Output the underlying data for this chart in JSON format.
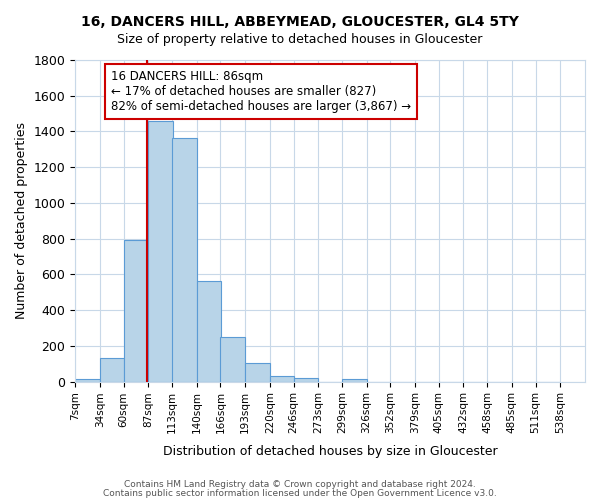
{
  "title": "16, DANCERS HILL, ABBEYMEAD, GLOUCESTER, GL4 5TY",
  "subtitle": "Size of property relative to detached houses in Gloucester",
  "xlabel": "Distribution of detached houses by size in Gloucester",
  "ylabel": "Number of detached properties",
  "bar_left_edges": [
    7,
    34,
    60,
    87,
    113,
    140,
    166,
    193,
    220,
    246,
    273,
    299,
    326,
    352,
    379,
    405,
    432,
    458,
    485,
    511
  ],
  "bar_heights": [
    15,
    130,
    795,
    1460,
    1365,
    565,
    250,
    105,
    30,
    20,
    0,
    15,
    0,
    0,
    0,
    0,
    0,
    0,
    0,
    0
  ],
  "bin_width": 27,
  "bar_color": "#b8d4e8",
  "bar_edge_color": "#5b9bd5",
  "tick_positions": [
    7,
    34,
    60,
    87,
    113,
    140,
    166,
    193,
    220,
    246,
    273,
    299,
    326,
    352,
    379,
    405,
    432,
    458,
    485,
    511,
    538
  ],
  "tick_labels": [
    "7sqm",
    "34sqm",
    "60sqm",
    "87sqm",
    "113sqm",
    "140sqm",
    "166sqm",
    "193sqm",
    "220sqm",
    "246sqm",
    "273sqm",
    "299sqm",
    "326sqm",
    "352sqm",
    "379sqm",
    "405sqm",
    "432sqm",
    "458sqm",
    "485sqm",
    "511sqm",
    "538sqm"
  ],
  "vline_x": 86,
  "vline_color": "#cc0000",
  "annotation_box_text": "16 DANCERS HILL: 86sqm\n← 17% of detached houses are smaller (827)\n82% of semi-detached houses are larger (3,867) →",
  "box_edge_color": "#cc0000",
  "ylim": [
    0,
    1800
  ],
  "yticks": [
    0,
    200,
    400,
    600,
    800,
    1000,
    1200,
    1400,
    1600,
    1800
  ],
  "footer1": "Contains HM Land Registry data © Crown copyright and database right 2024.",
  "footer2": "Contains public sector information licensed under the Open Government Licence v3.0.",
  "background_color": "#ffffff",
  "grid_color": "#c8d8e8"
}
